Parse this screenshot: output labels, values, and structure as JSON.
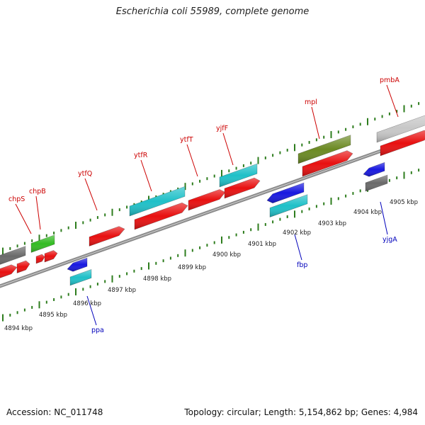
{
  "title": "Escherichia coli 55989, complete genome",
  "footer": {
    "accession": "Accession: NC_011748",
    "summary": "Topology: circular; Length: 5,154,862 bp; Genes: 4,984"
  },
  "colors": {
    "forward_label": "#cc0000",
    "reverse_label": "#0000bb",
    "backbone": "#8c8c8c",
    "ticks": "#2e7d1e",
    "cds": "#e81010",
    "cyan": "#1fc0c8",
    "blue": "#1818e0",
    "green": "#33bb22",
    "olive": "#6b8a23",
    "dark_gray": "#6a6a6a",
    "light_gray": "#c8c8c8"
  },
  "scale": {
    "unit": "kbp",
    "labels": [
      "4894 kbp",
      "4895 kbp",
      "4896 kbp",
      "4897 kbp",
      "4898 kbp",
      "4899 kbp",
      "4900 kbp",
      "4901 kbp",
      "4902 kbp",
      "4903 kbp",
      "4904 kbp",
      "4905 kbp"
    ]
  },
  "genes": {
    "forward": [
      "chpS",
      "chpB",
      "ytfQ",
      "ytfR",
      "ytfT",
      "yjfF",
      "mpl",
      "pmbA"
    ],
    "reverse": [
      "ppa",
      "fbp",
      "yjgA"
    ]
  }
}
